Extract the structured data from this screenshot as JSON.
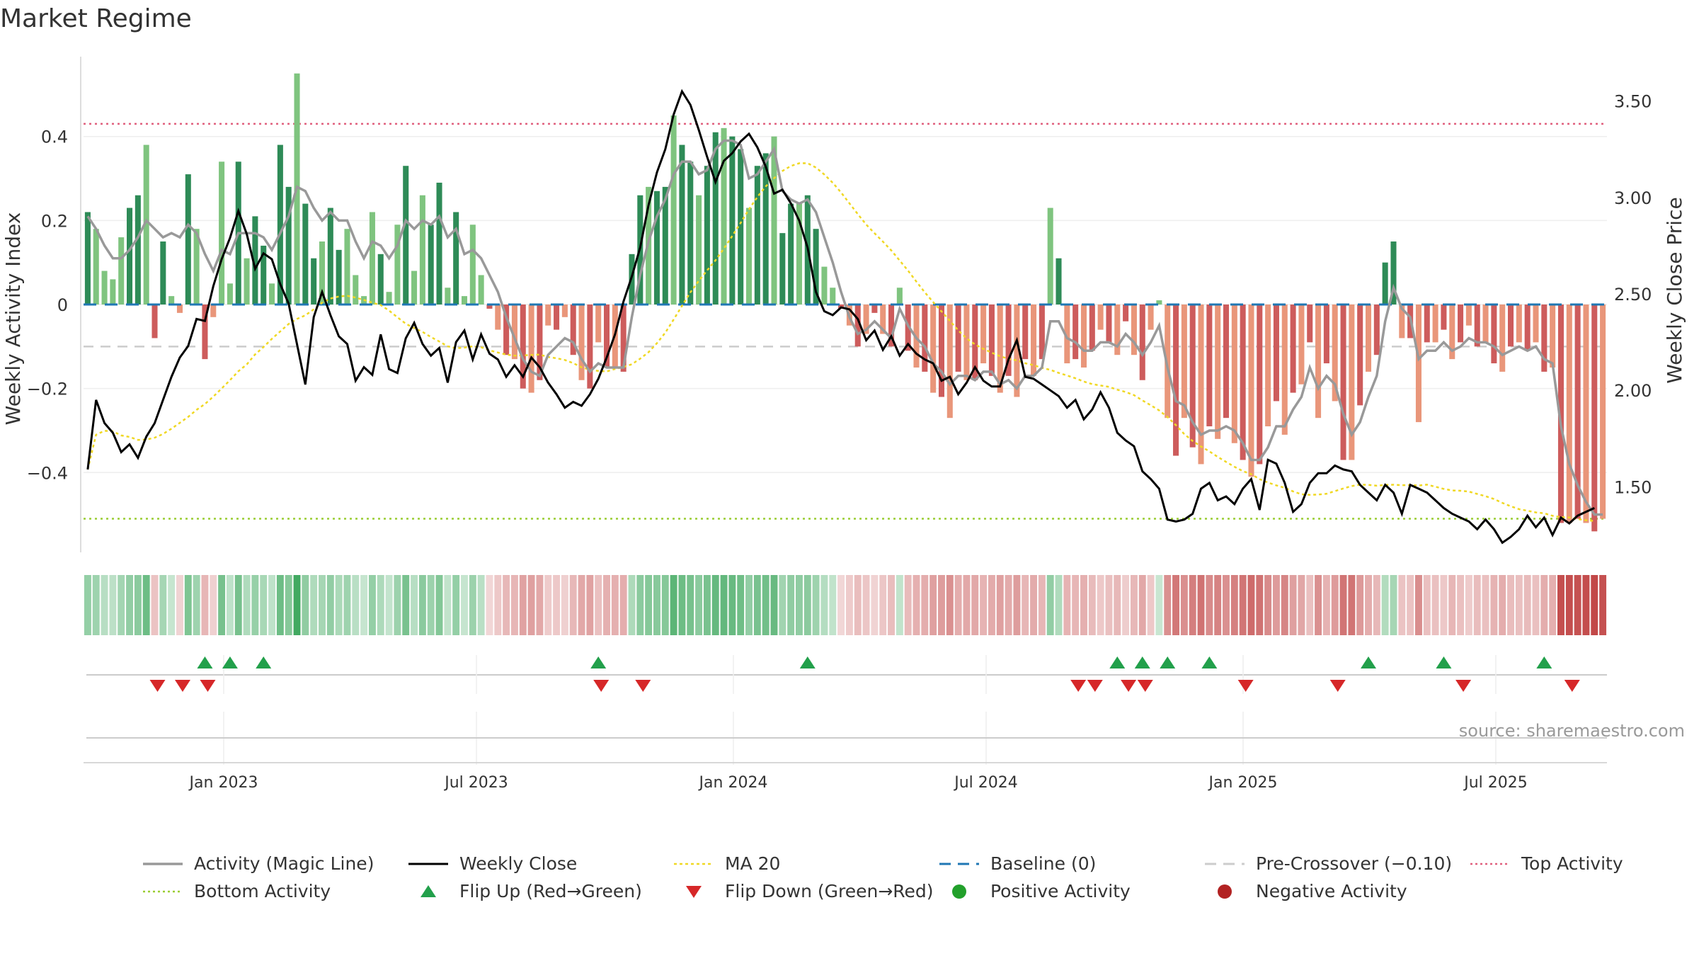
{
  "title": "Market Regime",
  "source": "source: sharemaestro.com",
  "chart_data": {
    "type": "bar",
    "x_labels": [
      "Jan 2023",
      "Jul 2023",
      "Jan 2024",
      "Jul 2024",
      "Jan 2025",
      "Jul 2025"
    ],
    "y_left": {
      "label": "Weekly Activity Index",
      "ticks": [
        "0.4",
        "0.2",
        "0",
        "−0.2",
        "−0.4"
      ],
      "range": [
        -0.59,
        0.59
      ]
    },
    "y_right": {
      "label": "Weekly Close Price",
      "ticks": [
        "3.50",
        "3.00",
        "2.50",
        "2.00",
        "1.50"
      ],
      "range": [
        1.16,
        3.73
      ]
    },
    "top_activity": 0.43,
    "bottom_activity": -0.51,
    "pre_crossover": -0.1,
    "colors": {
      "pos_strong": "#2e8b57",
      "pos_light": "#7fc47f",
      "neg_strong": "#cd5c5c",
      "neg_light": "#e9967a",
      "close": "#000000",
      "magic": "#999999",
      "ma": "#f0d824",
      "baseline": "#1f77b4",
      "pre": "#cccccc",
      "top": "#e0607e",
      "bottom": "#9acd32",
      "flip_up": "#22a04b",
      "flip_down": "#d62728"
    },
    "activity": [
      0.22,
      0.18,
      0.08,
      0.06,
      0.16,
      0.23,
      0.26,
      0.38,
      -0.08,
      0.15,
      0.02,
      -0.02,
      0.31,
      0.18,
      -0.13,
      -0.03,
      0.34,
      0.05,
      0.34,
      0.11,
      0.21,
      0.14,
      0.05,
      0.38,
      0.28,
      0.55,
      0.24,
      0.11,
      0.15,
      0.23,
      0.13,
      0.18,
      0.07,
      0.02,
      0.22,
      0.12,
      0.03,
      0.19,
      0.33,
      0.08,
      0.26,
      0.19,
      0.29,
      0.04,
      0.22,
      0.02,
      0.19,
      0.07,
      -0.01,
      -0.06,
      -0.12,
      -0.13,
      -0.2,
      -0.21,
      -0.18,
      -0.05,
      -0.06,
      -0.03,
      -0.12,
      -0.18,
      -0.2,
      -0.09,
      -0.15,
      -0.15,
      -0.16,
      0.12,
      0.26,
      0.28,
      0.27,
      0.28,
      0.45,
      0.38,
      0.34,
      0.26,
      0.33,
      0.41,
      0.42,
      0.4,
      0.37,
      0.23,
      0.33,
      0.36,
      0.4,
      0.17,
      0.24,
      0.24,
      0.26,
      0.18,
      0.09,
      0.04,
      -0.01,
      -0.05,
      -0.1,
      -0.07,
      -0.02,
      -0.07,
      -0.1,
      0.04,
      -0.11,
      -0.15,
      -0.16,
      -0.21,
      -0.22,
      -0.27,
      -0.16,
      -0.18,
      -0.18,
      -0.14,
      -0.17,
      -0.21,
      -0.17,
      -0.22,
      -0.13,
      -0.17,
      -0.13,
      0.23,
      0.11,
      -0.14,
      -0.13,
      -0.15,
      -0.11,
      -0.06,
      -0.09,
      -0.12,
      -0.04,
      -0.12,
      -0.18,
      -0.06,
      0.01,
      -0.27,
      -0.36,
      -0.27,
      -0.34,
      -0.38,
      -0.29,
      -0.32,
      -0.27,
      -0.33,
      -0.37,
      -0.41,
      -0.38,
      -0.29,
      -0.23,
      -0.31,
      -0.21,
      -0.19,
      -0.09,
      -0.27,
      -0.14,
      -0.23,
      -0.37,
      -0.37,
      -0.24,
      -0.16,
      -0.12,
      0.1,
      0.15,
      -0.08,
      -0.08,
      -0.28,
      -0.09,
      -0.09,
      -0.06,
      -0.13,
      -0.09,
      -0.05,
      -0.1,
      -0.09,
      -0.14,
      -0.16,
      -0.1,
      -0.09,
      -0.11,
      -0.09,
      -0.16,
      -0.15,
      -0.52,
      -0.52,
      -0.51,
      -0.52,
      -0.54,
      -0.51
    ],
    "close": [
      1.59,
      1.95,
      1.83,
      1.78,
      1.68,
      1.72,
      1.65,
      1.76,
      1.83,
      1.95,
      2.07,
      2.17,
      2.23,
      2.37,
      2.36,
      2.54,
      2.68,
      2.79,
      2.93,
      2.81,
      2.63,
      2.71,
      2.68,
      2.55,
      2.45,
      2.24,
      2.03,
      2.38,
      2.51,
      2.39,
      2.28,
      2.24,
      2.05,
      2.12,
      2.08,
      2.29,
      2.11,
      2.09,
      2.27,
      2.35,
      2.24,
      2.18,
      2.22,
      2.04,
      2.25,
      2.31,
      2.16,
      2.29,
      2.19,
      2.16,
      2.07,
      2.13,
      2.07,
      2.17,
      2.12,
      2.04,
      1.98,
      1.91,
      1.94,
      1.92,
      1.98,
      2.06,
      2.17,
      2.29,
      2.46,
      2.59,
      2.74,
      2.96,
      3.13,
      3.25,
      3.43,
      3.55,
      3.48,
      3.35,
      3.21,
      3.08,
      3.19,
      3.23,
      3.29,
      3.33,
      3.26,
      3.16,
      3.02,
      3.04,
      2.97,
      2.88,
      2.74,
      2.51,
      2.41,
      2.39,
      2.43,
      2.42,
      2.37,
      2.26,
      2.31,
      2.21,
      2.28,
      2.18,
      2.24,
      2.19,
      2.16,
      2.14,
      2.05,
      2.07,
      1.98,
      2.04,
      2.12,
      2.05,
      2.02,
      2.02,
      2.16,
      2.26,
      2.07,
      2.06,
      2.03,
      2.0,
      1.97,
      1.91,
      1.95,
      1.85,
      1.9,
      1.99,
      1.91,
      1.78,
      1.74,
      1.71,
      1.58,
      1.54,
      1.49,
      1.33,
      1.32,
      1.33,
      1.36,
      1.49,
      1.52,
      1.43,
      1.45,
      1.41,
      1.49,
      1.54,
      1.38,
      1.64,
      1.62,
      1.52,
      1.37,
      1.41,
      1.52,
      1.57,
      1.57,
      1.61,
      1.59,
      1.58,
      1.51,
      1.47,
      1.43,
      1.51,
      1.47,
      1.36,
      1.51,
      1.49,
      1.47,
      1.43,
      1.39,
      1.36,
      1.34,
      1.32,
      1.28,
      1.33,
      1.28,
      1.21,
      1.24,
      1.28,
      1.35,
      1.29,
      1.34,
      1.25,
      1.34,
      1.31,
      1.35,
      1.37,
      1.39
    ],
    "magic": [
      0.21,
      0.18,
      0.14,
      0.11,
      0.11,
      0.13,
      0.16,
      0.2,
      0.18,
      0.16,
      0.17,
      0.16,
      0.19,
      0.17,
      0.12,
      0.08,
      0.13,
      0.12,
      0.17,
      0.17,
      0.17,
      0.16,
      0.13,
      0.17,
      0.21,
      0.28,
      0.27,
      0.23,
      0.2,
      0.22,
      0.2,
      0.2,
      0.15,
      0.11,
      0.15,
      0.14,
      0.11,
      0.14,
      0.2,
      0.18,
      0.2,
      0.19,
      0.21,
      0.16,
      0.18,
      0.12,
      0.13,
      0.11,
      0.07,
      0.03,
      -0.03,
      -0.08,
      -0.13,
      -0.16,
      -0.17,
      -0.12,
      -0.1,
      -0.08,
      -0.09,
      -0.13,
      -0.16,
      -0.14,
      -0.15,
      -0.15,
      -0.15,
      -0.03,
      0.07,
      0.15,
      0.21,
      0.25,
      0.31,
      0.34,
      0.34,
      0.31,
      0.32,
      0.37,
      0.39,
      0.39,
      0.38,
      0.3,
      0.31,
      0.34,
      0.37,
      0.27,
      0.25,
      0.24,
      0.25,
      0.22,
      0.16,
      0.1,
      0.03,
      -0.03,
      -0.07,
      -0.06,
      -0.04,
      -0.06,
      -0.08,
      -0.01,
      -0.05,
      -0.08,
      -0.1,
      -0.14,
      -0.16,
      -0.19,
      -0.17,
      -0.17,
      -0.18,
      -0.16,
      -0.16,
      -0.19,
      -0.18,
      -0.2,
      -0.17,
      -0.17,
      -0.15,
      -0.04,
      -0.04,
      -0.08,
      -0.09,
      -0.11,
      -0.11,
      -0.09,
      -0.09,
      -0.1,
      -0.07,
      -0.09,
      -0.12,
      -0.09,
      -0.05,
      -0.15,
      -0.23,
      -0.24,
      -0.28,
      -0.31,
      -0.3,
      -0.3,
      -0.29,
      -0.3,
      -0.33,
      -0.37,
      -0.37,
      -0.34,
      -0.29,
      -0.29,
      -0.25,
      -0.22,
      -0.15,
      -0.2,
      -0.17,
      -0.19,
      -0.26,
      -0.31,
      -0.28,
      -0.22,
      -0.17,
      -0.04,
      0.04,
      -0.01,
      -0.03,
      -0.13,
      -0.11,
      -0.11,
      -0.09,
      -0.11,
      -0.1,
      -0.08,
      -0.09,
      -0.09,
      -0.1,
      -0.12,
      -0.11,
      -0.1,
      -0.11,
      -0.1,
      -0.13,
      -0.14,
      -0.29,
      -0.38,
      -0.43,
      -0.47,
      -0.5,
      -0.5
    ],
    "ma20": [
      -0.06,
      -0.06,
      -0.06,
      -0.06,
      -0.06,
      -0.06,
      -0.06,
      -0.06,
      -0.06,
      -0.06,
      -0.06,
      -0.06,
      -0.06,
      -0.06,
      -0.06,
      -0.06,
      -0.06,
      -0.06,
      -0.06,
      -0.06,
      -0.06,
      -0.06,
      -0.06,
      -0.06,
      -0.06,
      -0.06,
      -0.06,
      -0.06,
      -0.06,
      -0.06,
      -0.06,
      -0.06,
      -0.06,
      -0.06,
      -0.06,
      -0.06,
      -0.06,
      -0.06,
      -0.06,
      -0.06,
      -0.06,
      -0.06,
      -0.06,
      -0.06,
      -0.06,
      -0.06,
      -0.06,
      -0.06,
      -0.06,
      -0.06,
      -0.06,
      -0.06,
      -0.06,
      -0.06,
      -0.06,
      -0.06,
      -0.06,
      -0.06,
      -0.06,
      -0.06,
      -0.06,
      -0.06,
      -0.06,
      -0.06,
      -0.06,
      -0.06,
      -0.06,
      -0.06,
      -0.06,
      -0.06,
      -0.06,
      -0.06,
      -0.06,
      -0.06,
      -0.06,
      -0.06,
      -0.06,
      -0.06,
      -0.06,
      -0.06,
      -0.06,
      -0.06,
      -0.06,
      -0.06,
      -0.06,
      -0.06,
      -0.06,
      -0.06,
      -0.06,
      -0.06,
      -0.06,
      -0.06,
      -0.06,
      -0.06,
      -0.06,
      -0.06,
      -0.06,
      -0.06,
      -0.06,
      -0.06,
      -0.06,
      -0.06,
      -0.06,
      -0.06,
      -0.06,
      -0.06,
      -0.06,
      -0.06,
      -0.06,
      -0.06,
      -0.06,
      -0.06,
      -0.06,
      -0.06,
      -0.06,
      -0.06,
      -0.06,
      -0.06,
      -0.06,
      -0.06,
      -0.06,
      -0.06,
      -0.06,
      -0.06,
      -0.06,
      -0.06,
      -0.06,
      -0.06,
      -0.06,
      -0.06,
      -0.06,
      -0.06,
      -0.06,
      -0.06,
      -0.06,
      -0.06,
      -0.06,
      -0.06,
      -0.06,
      -0.06,
      -0.06,
      -0.06,
      -0.06,
      -0.06,
      -0.06,
      -0.06,
      -0.06,
      -0.06,
      -0.06,
      -0.06,
      -0.06,
      -0.06,
      -0.06,
      -0.06,
      -0.06,
      -0.06,
      -0.06,
      -0.06,
      -0.06,
      -0.06,
      -0.06,
      -0.06,
      -0.06,
      -0.06,
      -0.06,
      -0.06,
      -0.06,
      -0.06,
      -0.06,
      -0.06,
      -0.06,
      -0.06,
      -0.06,
      -0.06,
      -0.06,
      -0.06,
      -0.06,
      -0.06,
      -0.06,
      -0.06,
      -0.06,
      -0.06,
      -0.06,
      -0.06,
      -0.06,
      -0.06,
      -0.06,
      -0.06
    ],
    "flip_up_weeks": [
      12,
      15,
      19,
      63,
      84,
      124,
      127,
      130,
      135,
      154,
      161,
      172
    ],
    "flip_down_weeks": [
      13,
      16,
      20,
      47,
      64,
      98,
      101,
      106,
      109,
      125,
      128,
      145,
      158,
      167,
      171,
      175
    ],
    "flip_up_pos_weeks": [
      14,
      17,
      21,
      61,
      86,
      123,
      126,
      129,
      134,
      153,
      162,
      174
    ],
    "flip_down_pos_weeks": [
      8,
      11,
      14,
      61,
      66,
      118,
      120,
      124,
      126,
      138,
      149,
      164,
      177
    ],
    "legend": [
      {
        "label": "Activity (Magic Line)",
        "kind": "line-gray"
      },
      {
        "label": "Weekly Close",
        "kind": "line-black"
      },
      {
        "label": "MA 20",
        "kind": "dotted-yellow"
      },
      {
        "label": "Baseline (0)",
        "kind": "dashed-blue"
      },
      {
        "label": "Pre-Crossover (−0.10)",
        "kind": "dashed-gray"
      },
      {
        "label": "Top Activity",
        "kind": "dotted-pink"
      },
      {
        "label": "Bottom Activity",
        "kind": "dotted-green"
      },
      {
        "label": "Flip Up (Red→Green)",
        "kind": "tri-up"
      },
      {
        "label": "Flip Down (Green→Red)",
        "kind": "tri-down"
      },
      {
        "label": "Positive Activity",
        "kind": "dot-green"
      },
      {
        "label": "Negative Activity",
        "kind": "dot-red"
      }
    ]
  }
}
